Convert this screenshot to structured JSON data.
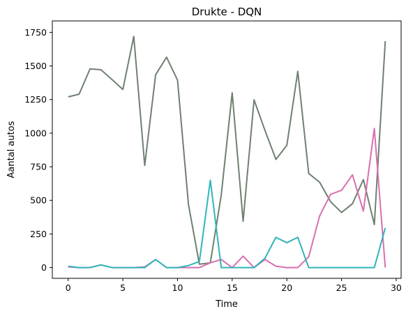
{
  "chart_data": {
    "type": "line",
    "title": "Drukte - DQN",
    "xlabel": "Time",
    "ylabel": "Aantal autos",
    "xlim": [
      -1.45,
      30.45
    ],
    "ylim": [
      -80,
      1835
    ],
    "x_ticks": [
      0,
      5,
      10,
      15,
      20,
      25,
      30
    ],
    "y_ticks": [
      0,
      250,
      500,
      750,
      1000,
      1250,
      1500,
      1750
    ],
    "x": [
      0,
      1,
      2,
      3,
      4,
      5,
      6,
      7,
      8,
      9,
      10,
      11,
      12,
      13,
      14,
      15,
      16,
      17,
      18,
      19,
      20,
      21,
      22,
      23,
      24,
      25,
      26,
      27,
      28,
      29
    ],
    "grid": false,
    "legend": "none",
    "series": [
      {
        "color": "#6f8070",
        "values": [
          1270,
          1290,
          1478,
          1472,
          1400,
          1325,
          1720,
          760,
          1435,
          1565,
          1395,
          470,
          25,
          35,
          540,
          1300,
          345,
          1248,
          1020,
          805,
          910,
          1460,
          700,
          635,
          490,
          410,
          475,
          655,
          320,
          1685
        ]
      },
      {
        "color": "#d86fae",
        "values": [
          5,
          0,
          0,
          20,
          0,
          0,
          0,
          5,
          60,
          0,
          0,
          0,
          0,
          35,
          60,
          0,
          85,
          0,
          60,
          10,
          0,
          0,
          80,
          385,
          545,
          575,
          690,
          420,
          1035,
          0
        ]
      },
      {
        "color": "#2fb5b8",
        "values": [
          10,
          0,
          0,
          20,
          0,
          0,
          0,
          0,
          60,
          0,
          0,
          15,
          45,
          650,
          0,
          0,
          0,
          0,
          70,
          225,
          185,
          225,
          0,
          0,
          0,
          0,
          0,
          0,
          0,
          295
        ]
      }
    ]
  }
}
